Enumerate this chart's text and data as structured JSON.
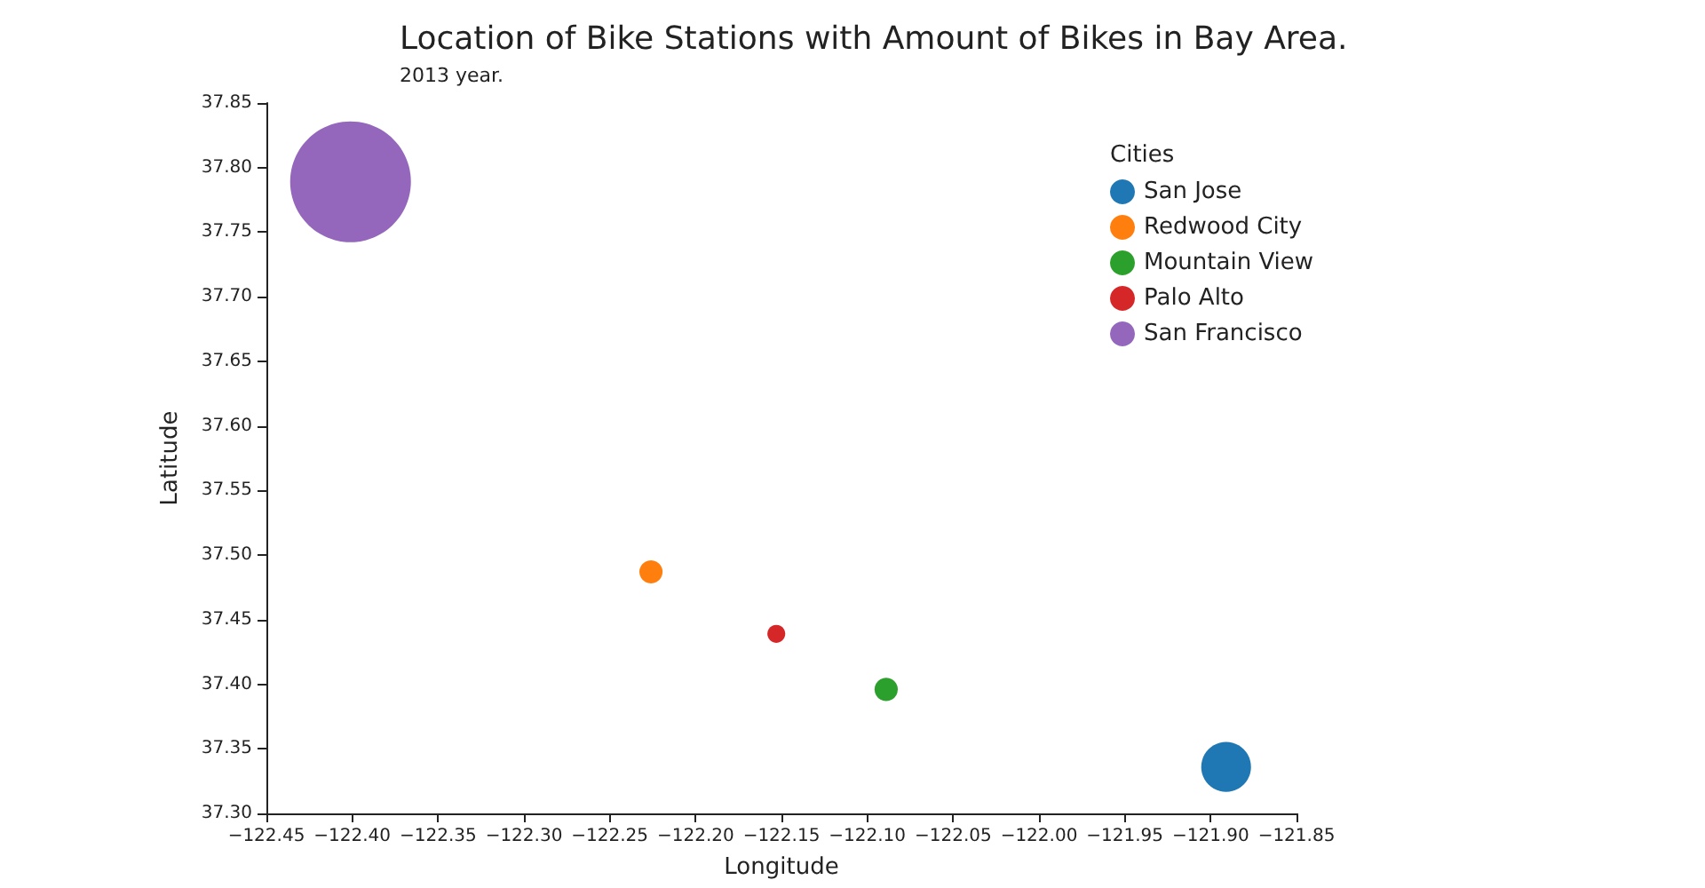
{
  "chart_data": {
    "type": "bubble",
    "title": "Location of Bike Stations with Amount of Bikes in Bay Area.",
    "subtitle": "2013 year.",
    "xlabel": "Longitude",
    "ylabel": "Latitude",
    "legend_title": "Cities",
    "series": [
      {
        "name": "San Jose",
        "color": "#1f77b4",
        "x": [
          -121.891
        ],
        "values": [
          37.336
        ],
        "sizes": [
          0.17
        ]
      },
      {
        "name": "Redwood City",
        "color": "#ff7f0e",
        "x": [
          -122.226
        ],
        "values": [
          37.487
        ],
        "sizes": [
          0.037
        ]
      },
      {
        "name": "Mountain View",
        "color": "#2ca02c",
        "x": [
          -122.089
        ],
        "values": [
          37.396
        ],
        "sizes": [
          0.037
        ]
      },
      {
        "name": "Palo Alto",
        "color": "#d62728",
        "x": [
          -122.153
        ],
        "values": [
          37.439
        ],
        "sizes": [
          0.022
        ]
      },
      {
        "name": "San Francisco",
        "color": "#9467bd",
        "x": [
          -122.401
        ],
        "values": [
          37.789
        ],
        "sizes": [
          1
        ]
      }
    ],
    "xlim": [
      -122.45,
      -121.85
    ],
    "xticks": [
      {
        "value": -122.45,
        "label": "−122.45"
      },
      {
        "value": -122.4,
        "label": "−122.40"
      },
      {
        "value": -122.35,
        "label": "−122.35"
      },
      {
        "value": -122.3,
        "label": "−122.30"
      },
      {
        "value": -122.25,
        "label": "−122.25"
      },
      {
        "value": -122.2,
        "label": "−122.20"
      },
      {
        "value": -122.15,
        "label": "−122.15"
      },
      {
        "value": -122.1,
        "label": "−122.10"
      },
      {
        "value": -122.05,
        "label": "−122.05"
      },
      {
        "value": -122,
        "label": "−122.00"
      },
      {
        "value": -121.95,
        "label": "−121.95"
      },
      {
        "value": -121.9,
        "label": "−121.90"
      },
      {
        "value": -121.85,
        "label": "−121.85"
      }
    ],
    "ylim": [
      37.3,
      37.85
    ],
    "yticks": [
      {
        "value": 37.3,
        "label": "37.30"
      },
      {
        "value": 37.35,
        "label": "37.35"
      },
      {
        "value": 37.4,
        "label": "37.40"
      },
      {
        "value": 37.45,
        "label": "37.45"
      },
      {
        "value": 37.5,
        "label": "37.50"
      },
      {
        "value": 37.55,
        "label": "37.55"
      },
      {
        "value": 37.6,
        "label": "37.60"
      },
      {
        "value": 37.65,
        "label": "37.65"
      },
      {
        "value": 37.7,
        "label": "37.70"
      },
      {
        "value": 37.75,
        "label": "37.75"
      },
      {
        "value": 37.8,
        "label": "37.80"
      },
      {
        "value": 37.85,
        "label": "37.85"
      }
    ],
    "grid": false,
    "legend": "top right"
  }
}
